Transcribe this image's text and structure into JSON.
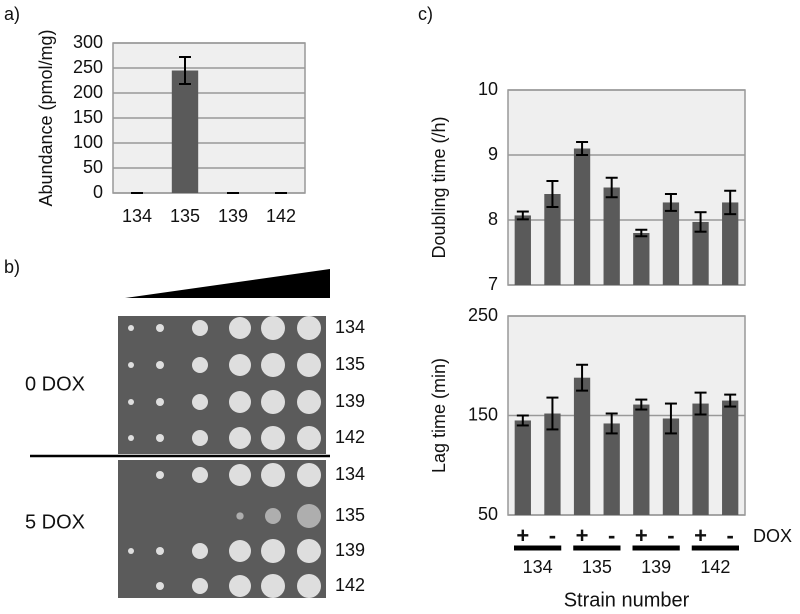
{
  "chart_data": [
    {
      "type": "bar",
      "panel_label": "a)",
      "ylabel": "Abundance (pmol/mg)",
      "categories": [
        "134",
        "135",
        "139",
        "142"
      ],
      "values": [
        0,
        245,
        0,
        0
      ],
      "errors": [
        0,
        27,
        0,
        0
      ],
      "ylim": [
        0,
        300
      ],
      "yticks": [
        0,
        50,
        100,
        150,
        200,
        250,
        300
      ],
      "grid": true,
      "color": "#5a5a5a"
    },
    {
      "type": "bar",
      "panel_label": "c)",
      "ylabel": "Doubling time (/h)",
      "values": [
        8.07,
        8.4,
        9.1,
        8.5,
        7.8,
        8.27,
        7.97,
        8.27
      ],
      "errors": [
        0.06,
        0.2,
        0.1,
        0.15,
        0.05,
        0.13,
        0.15,
        0.18
      ],
      "ylim": [
        7,
        10
      ],
      "yticks": [
        7,
        8,
        9,
        10
      ],
      "grid": true,
      "color": "#5a5a5a"
    },
    {
      "type": "bar",
      "ylabel": "Lag time (min)",
      "xlabel": "Strain number",
      "category_title": "DOX",
      "categories": [
        "+",
        "-",
        "+",
        "-",
        "+",
        "-",
        "+",
        "-"
      ],
      "groups": [
        "134",
        "135",
        "139",
        "142"
      ],
      "values": [
        145,
        152,
        188,
        142,
        161,
        147,
        162,
        165
      ],
      "errors": [
        5,
        16,
        13,
        10,
        5,
        15,
        11,
        6
      ],
      "ylim": [
        50,
        250
      ],
      "yticks": [
        50,
        150,
        250
      ],
      "grid": true,
      "color": "#5a5a5a"
    }
  ],
  "spot_assay": {
    "panel_label": "b)",
    "conditions": [
      {
        "label": "0 DOX",
        "strains": [
          "134",
          "135",
          "139",
          "142"
        ]
      },
      {
        "label": "5 DOX",
        "strains": [
          "134",
          "135",
          "139",
          "142"
        ]
      }
    ]
  }
}
